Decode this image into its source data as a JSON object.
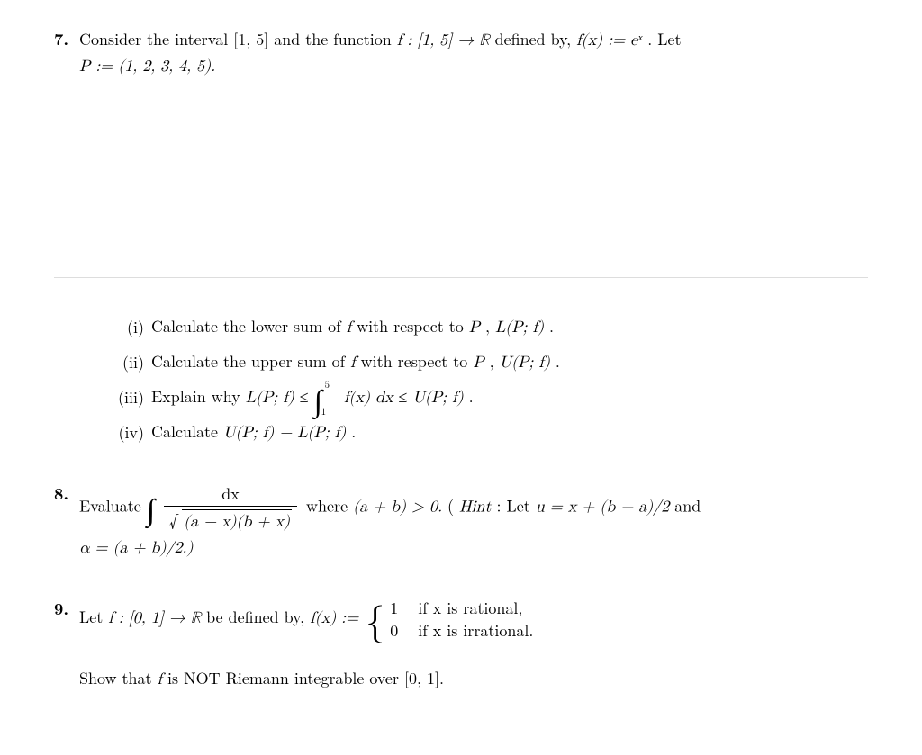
{
  "p7": {
    "number": "7.",
    "intro_a": "Consider the interval [1, 5] and the function ",
    "intro_f": "f : [1, 5] → ℝ",
    "intro_b": " defined by, ",
    "intro_fx": "f(x) := eˣ",
    "intro_c": ".   Let",
    "intro_P": "P := (1, 2, 3, 4, 5).",
    "i_num": "(i)",
    "i_text_a": "Calculate the lower sum of ",
    "i_text_f": "f",
    "i_text_b": " with respect to ",
    "i_text_P": "P",
    "i_text_c": ", ",
    "i_text_L": "L(P; f)",
    "i_text_d": ".",
    "ii_num": "(ii)",
    "ii_text_a": "Calculate the upper sum of ",
    "ii_text_f": "f",
    "ii_text_b": " with respect to ",
    "ii_text_P": "P",
    "ii_text_c": ", ",
    "ii_text_U": "U(P; f)",
    "ii_text_d": ".",
    "iii_num": "(iii)",
    "iii_text_a": "Explain why ",
    "iii_L": "L(P; f)",
    "iii_le1": " ≤ ",
    "iii_int_top": "5",
    "iii_int_bot": "1",
    "iii_integrand": "f(x) dx",
    "iii_le2": " ≤ ",
    "iii_U": "U(P; f)",
    "iii_end": ".",
    "iv_num": "(iv)",
    "iv_text_a": "Calculate ",
    "iv_expr": "U(P; f) − L(P; f)",
    "iv_end": "."
  },
  "p8": {
    "number": "8.",
    "lead": "Evaluate  ",
    "frac_num": "dx",
    "frac_den_inner": "(a − x)(b + x)",
    "where": "  where  ",
    "cond": "(a + b) > 0.",
    "hint_open": "   (",
    "hint_label": "Hint",
    "hint_body1": ":  Let  ",
    "hint_u": "u  =  x + (b − a)/2",
    "hint_body2": "   and",
    "alpha_line": "α = (a + b)/2.)"
  },
  "p9": {
    "number": "9.",
    "lead_a": "Let ",
    "lead_f": "f : [0, 1] → ℝ",
    "lead_b": " be defined by, ",
    "fx": "f(x) := ",
    "row1_val": "1",
    "row1_cond": "if x is rational,",
    "row2_val": "0",
    "row2_cond": "if x is irrational.",
    "show_a": "Show that ",
    "show_f": "f",
    "show_b": " is NOT Riemann integrable over [0, 1]."
  }
}
